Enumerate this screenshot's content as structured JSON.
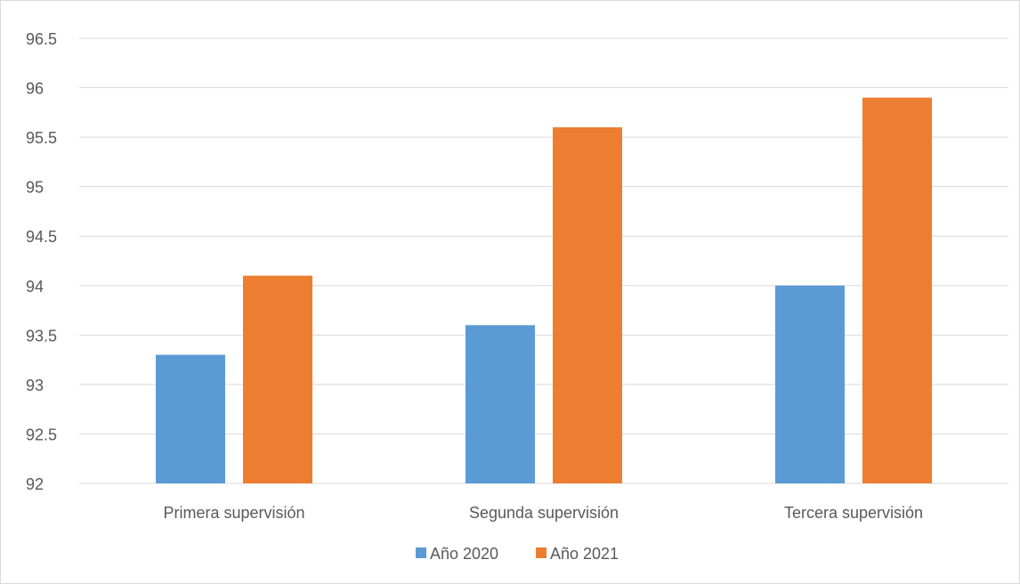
{
  "chart_data": {
    "type": "bar",
    "title": "",
    "xlabel": "",
    "ylabel": "",
    "categories": [
      "Primera supervisión",
      "Segunda supervisión",
      "Tercera supervisión"
    ],
    "series": [
      {
        "name": "Año 2020",
        "color": "#5b9bd5",
        "values": [
          93.3,
          93.6,
          94.0
        ]
      },
      {
        "name": "Año 2021",
        "color": "#ed7d31",
        "values": [
          94.1,
          95.6,
          95.9
        ]
      }
    ],
    "ylim": [
      92,
      96.5
    ],
    "yticks": [
      "92",
      "92.5",
      "93",
      "93.5",
      "94",
      "94.5",
      "95",
      "95.5",
      "96",
      "96.5"
    ],
    "grid": true,
    "legend": "bottom"
  }
}
